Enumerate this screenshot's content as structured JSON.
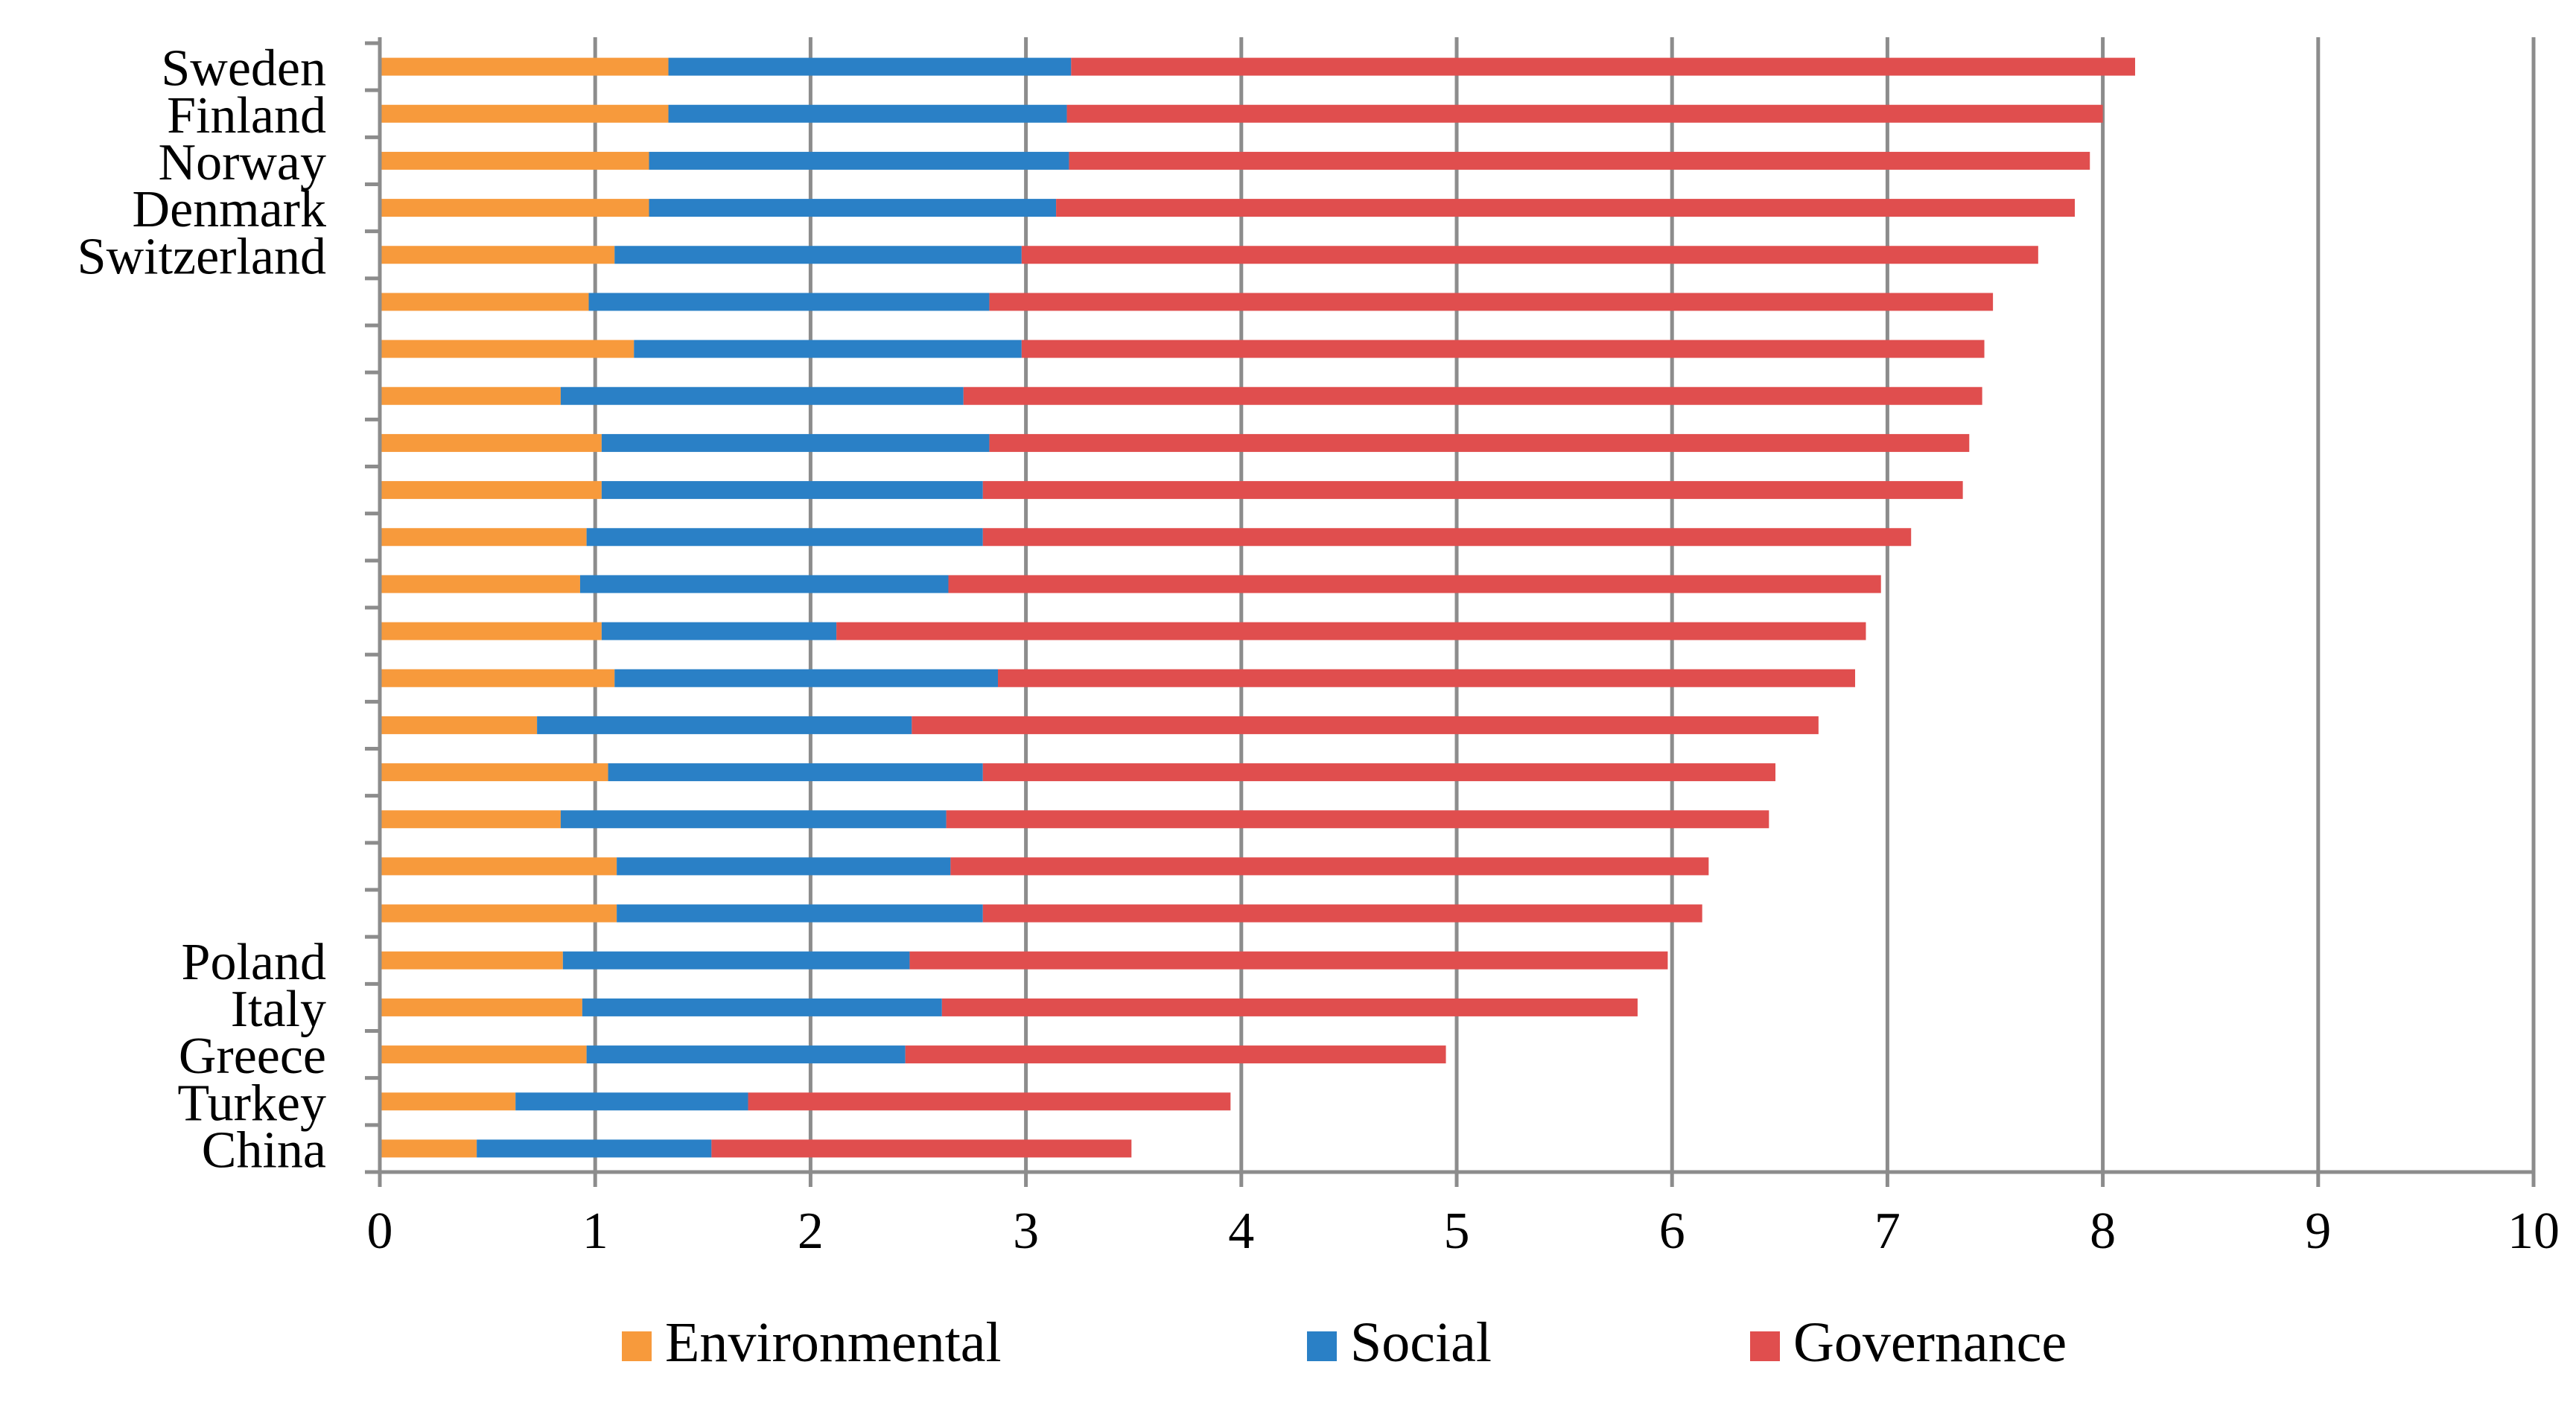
{
  "chart_data": {
    "type": "bar",
    "orientation": "horizontal",
    "stacked": true,
    "categories": [
      "Sweden",
      "Finland",
      "Norway",
      "Denmark",
      "Switzerland",
      "",
      "",
      "",
      "",
      "",
      "",
      "",
      "",
      "",
      "",
      "",
      "",
      "",
      "",
      "Poland",
      "Italy",
      "Greece",
      "Turkey",
      "China"
    ],
    "series": [
      {
        "name": "Environmental",
        "color": "#f79a3c",
        "values": [
          1.34,
          1.34,
          1.25,
          1.25,
          1.09,
          0.97,
          1.18,
          0.84,
          1.03,
          1.03,
          0.96,
          0.93,
          1.03,
          1.09,
          0.73,
          1.06,
          0.84,
          1.1,
          1.1,
          0.85,
          0.94,
          0.96,
          0.63,
          0.45
        ]
      },
      {
        "name": "Social",
        "color": "#2a80c6",
        "values": [
          1.87,
          1.85,
          1.95,
          1.89,
          1.89,
          1.86,
          1.8,
          1.87,
          1.8,
          1.77,
          1.84,
          1.71,
          1.09,
          1.78,
          1.74,
          1.74,
          1.79,
          1.55,
          1.7,
          1.61,
          1.67,
          1.48,
          1.08,
          1.09
        ]
      },
      {
        "name": "Governance",
        "color": "#e04e4e",
        "values": [
          4.94,
          4.81,
          4.74,
          4.73,
          4.72,
          4.66,
          4.47,
          4.73,
          4.55,
          4.55,
          4.31,
          4.33,
          4.78,
          3.98,
          4.21,
          3.68,
          3.82,
          3.52,
          3.34,
          3.52,
          3.23,
          2.51,
          2.24,
          1.95
        ]
      }
    ],
    "xlim": [
      0,
      10
    ],
    "xticks": [
      "0",
      "1",
      "2",
      "3",
      "4",
      "5",
      "6",
      "7",
      "8",
      "9",
      "10"
    ],
    "title": "",
    "xlabel": "",
    "ylabel": "",
    "grid": "vertical major gridlines",
    "legend_position": "bottom"
  }
}
